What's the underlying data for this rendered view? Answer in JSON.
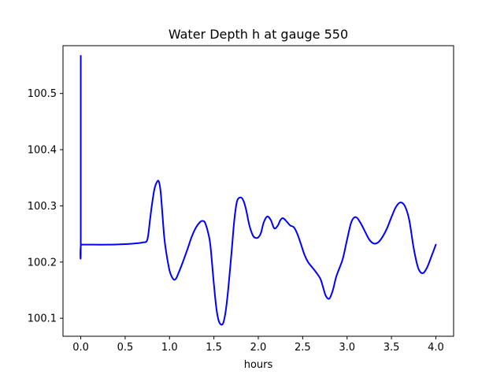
{
  "chart_data": {
    "type": "line",
    "title": "Water Depth h at gauge 550",
    "xlabel": "hours",
    "ylabel": "",
    "xlim": [
      -0.2,
      4.2
    ],
    "ylim": [
      100.068,
      100.585
    ],
    "x_ticks": [
      0.0,
      0.5,
      1.0,
      1.5,
      2.0,
      2.5,
      3.0,
      3.5,
      4.0
    ],
    "x_tick_labels": [
      "0.0",
      "0.5",
      "1.0",
      "1.5",
      "2.0",
      "2.5",
      "3.0",
      "3.5",
      "4.0"
    ],
    "y_ticks": [
      100.1,
      100.2,
      100.3,
      100.4,
      100.5
    ],
    "y_tick_labels": [
      "100.1",
      "100.2",
      "100.3",
      "100.4",
      "100.5"
    ],
    "grid": false,
    "series": [
      {
        "color": "#0000ff",
        "x": [
          0.0,
          0.0,
          0.005,
          0.1,
          0.3,
          0.5,
          0.6,
          0.7,
          0.75,
          0.78,
          0.8,
          0.83,
          0.86,
          0.88,
          0.9,
          0.92,
          0.94,
          0.96,
          1.0,
          1.04,
          1.07,
          1.1,
          1.15,
          1.2,
          1.25,
          1.3,
          1.35,
          1.38,
          1.4,
          1.43,
          1.46,
          1.5,
          1.53,
          1.56,
          1.6,
          1.63,
          1.66,
          1.7,
          1.73,
          1.76,
          1.8,
          1.83,
          1.86,
          1.9,
          1.94,
          1.97,
          2.0,
          2.03,
          2.06,
          2.1,
          2.14,
          2.18,
          2.22,
          2.25,
          2.28,
          2.32,
          2.36,
          2.4,
          2.44,
          2.48,
          2.52,
          2.56,
          2.6,
          2.65,
          2.7,
          2.73,
          2.76,
          2.8,
          2.84,
          2.88,
          2.95,
          3.0,
          3.05,
          3.1,
          3.15,
          3.2,
          3.25,
          3.3,
          3.35,
          3.4,
          3.45,
          3.5,
          3.55,
          3.6,
          3.65,
          3.7,
          3.75,
          3.8,
          3.85,
          3.9,
          3.95,
          4.0
        ],
        "y": [
          100.567,
          100.231,
          100.231,
          100.231,
          100.231,
          100.232,
          100.233,
          100.235,
          100.24,
          100.275,
          100.3,
          100.33,
          100.343,
          100.343,
          100.325,
          100.285,
          100.245,
          100.22,
          100.185,
          100.17,
          100.17,
          100.18,
          100.2,
          100.222,
          100.245,
          100.262,
          100.272,
          100.273,
          100.27,
          100.255,
          100.23,
          100.16,
          100.115,
          100.093,
          100.09,
          100.11,
          100.15,
          100.22,
          100.275,
          100.308,
          100.315,
          100.31,
          100.295,
          100.265,
          100.247,
          100.243,
          100.244,
          100.252,
          100.27,
          100.281,
          100.275,
          100.26,
          100.265,
          100.275,
          100.278,
          100.272,
          100.265,
          100.262,
          100.25,
          100.232,
          100.213,
          100.2,
          100.192,
          100.182,
          100.17,
          100.155,
          100.14,
          100.135,
          100.15,
          100.175,
          100.205,
          100.24,
          100.272,
          100.28,
          100.27,
          100.255,
          100.24,
          100.233,
          100.235,
          100.245,
          100.26,
          100.28,
          100.298,
          100.306,
          100.3,
          100.275,
          100.225,
          100.19,
          100.18,
          100.19,
          100.21,
          100.231
        ]
      }
    ]
  }
}
